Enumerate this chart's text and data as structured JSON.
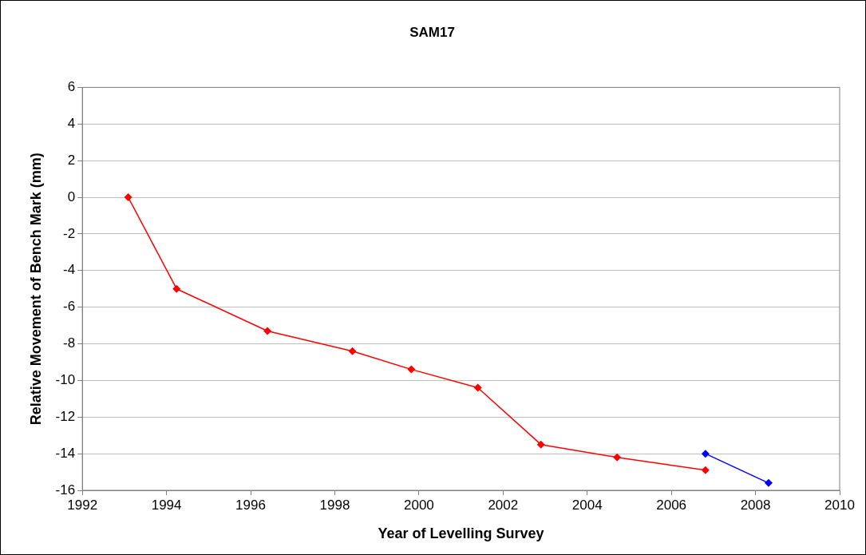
{
  "chart_data": {
    "type": "line",
    "title": "SAM17",
    "xlabel": "Year of Levelling Survey",
    "ylabel": "Relative Movement of Bench Mark (mm)",
    "series": [
      {
        "color": "#ff0000",
        "x": [
          1993.09,
          1994.24,
          1996.4,
          1998.42,
          1999.82,
          2001.4,
          2002.9,
          2004.71,
          2006.81
        ],
        "values": [
          0,
          -5.0,
          -7.3,
          -8.4,
          -9.4,
          -10.4,
          -13.5,
          -14.2,
          -14.9
        ]
      },
      {
        "color": "#0000ff",
        "x": [
          2006.81,
          2008.31
        ],
        "values": [
          -14.0,
          -15.6
        ]
      }
    ],
    "xlim": [
      1992,
      2010
    ],
    "xticks": [
      1992,
      1994,
      1996,
      1998,
      2000,
      2002,
      2004,
      2006,
      2008,
      2010
    ],
    "ylim": [
      -16,
      6
    ],
    "yticks": [
      -16,
      -14,
      -12,
      -10,
      -8,
      -6,
      -4,
      -2,
      0,
      2,
      4,
      6
    ],
    "grid": "y",
    "legend": false,
    "marker": "diamond",
    "line_style": "solid"
  }
}
